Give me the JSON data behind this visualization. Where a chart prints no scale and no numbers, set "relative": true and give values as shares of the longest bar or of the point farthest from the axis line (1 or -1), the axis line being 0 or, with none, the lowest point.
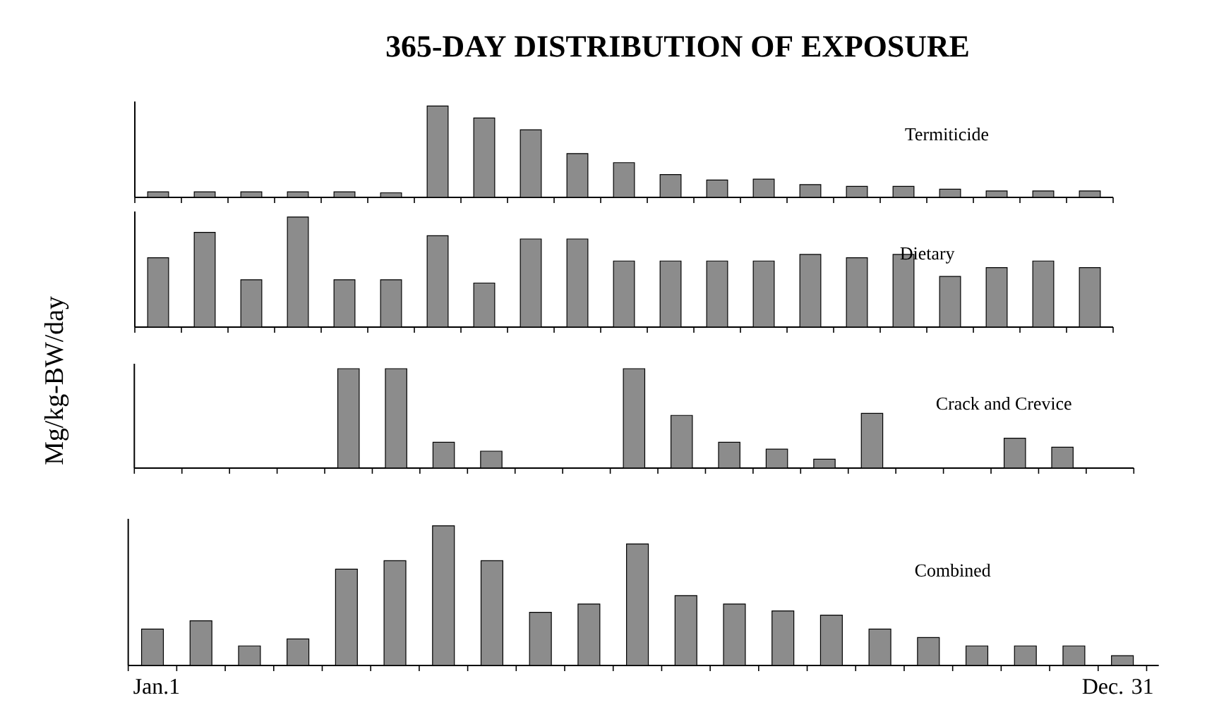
{
  "chart_data": [
    {
      "type": "bar",
      "title": "365-DAY DISTRIBUTION OF EXPOSURE",
      "ylabel": "Mg/kg-BW/day",
      "relative": true,
      "categories": [
        null,
        null,
        null,
        null,
        null,
        null,
        null,
        null,
        null,
        null,
        null,
        null,
        null,
        null,
        null,
        null,
        null,
        null,
        null,
        null,
        null
      ],
      "series": [
        {
          "name": "Termiticide",
          "color": "#8c8c8c",
          "values": [
            0.06,
            0.06,
            0.06,
            0.06,
            0.06,
            0.05,
            1,
            0.87,
            0.74,
            0.48,
            0.38,
            0.25,
            0.19,
            0.2,
            0.14,
            0.12,
            0.12,
            0.09,
            0.07,
            0.07,
            0.07
          ]
        }
      ]
    },
    {
      "type": "bar",
      "relative": true,
      "categories": [
        null,
        null,
        null,
        null,
        null,
        null,
        null,
        null,
        null,
        null,
        null,
        null,
        null,
        null,
        null,
        null,
        null,
        null,
        null,
        null,
        null
      ],
      "series": [
        {
          "name": "Dietary",
          "color": "#8c8c8c",
          "values": [
            0.63,
            0.86,
            0.43,
            1,
            0.43,
            0.43,
            0.83,
            0.4,
            0.8,
            0.8,
            0.6,
            0.6,
            0.6,
            0.6,
            0.66,
            0.63,
            0.66,
            0.46,
            0.54,
            0.6,
            0.54
          ]
        }
      ]
    },
    {
      "type": "bar",
      "relative": true,
      "categories": [
        null,
        null,
        null,
        null,
        null,
        null,
        null,
        null,
        null,
        null,
        null,
        null,
        null,
        null,
        null,
        null,
        null,
        null,
        null,
        null,
        null
      ],
      "series": [
        {
          "name": "Crack and Crevice",
          "color": "#8c8c8c",
          "values": [
            null,
            null,
            null,
            null,
            1,
            1,
            0.26,
            0.17,
            null,
            null,
            1,
            0.53,
            0.26,
            0.19,
            0.09,
            0.55,
            null,
            null,
            0.3,
            0.21,
            null
          ]
        }
      ]
    },
    {
      "type": "bar",
      "relative": true,
      "annotations": [
        "Jan.1",
        "Dec. 31"
      ],
      "categories": [
        null,
        null,
        null,
        null,
        null,
        null,
        null,
        null,
        null,
        null,
        null,
        null,
        null,
        null,
        null,
        null,
        null,
        null,
        null,
        null,
        null
      ],
      "series": [
        {
          "name": "Combined",
          "color": "#8c8c8c",
          "values": [
            0.26,
            0.32,
            0.14,
            0.19,
            0.69,
            0.75,
            1,
            0.75,
            0.38,
            0.44,
            0.87,
            0.5,
            0.44,
            0.39,
            0.36,
            0.26,
            0.2,
            0.14,
            0.14,
            0.14,
            0.07
          ]
        }
      ]
    }
  ]
}
